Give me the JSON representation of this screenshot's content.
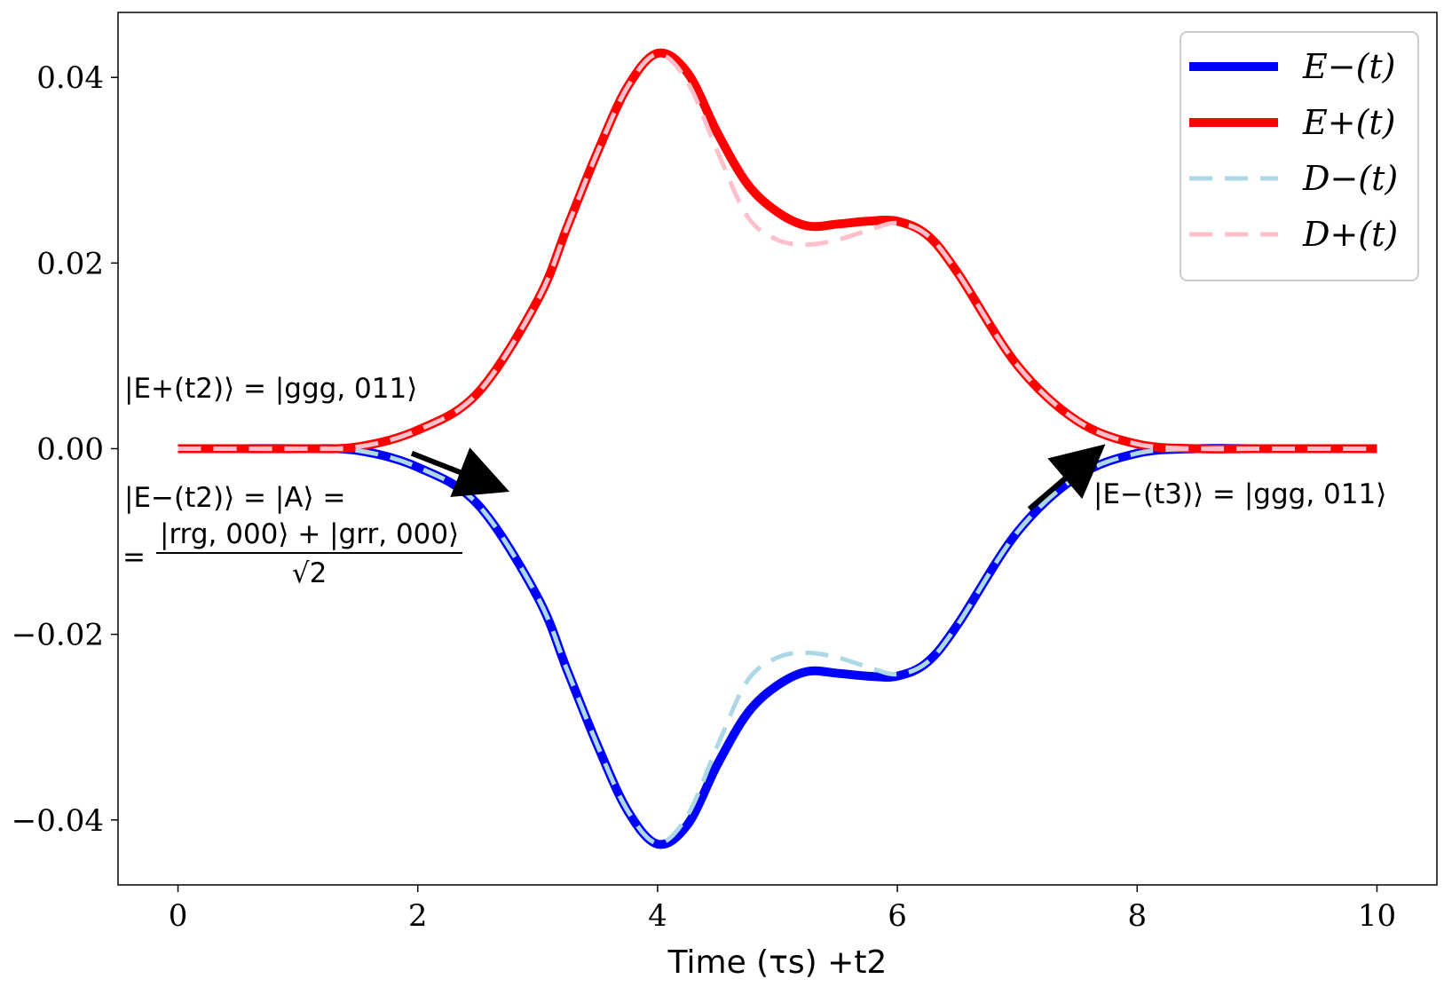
{
  "chart_data": {
    "type": "line",
    "title": "",
    "xlabel": "Time (τs) +t2",
    "ylabel": "",
    "xlim": [
      -0.5,
      10.5
    ],
    "ylim": [
      -0.047,
      0.047
    ],
    "xticks": [
      0,
      2,
      4,
      6,
      8,
      10
    ],
    "xtick_labels": [
      "0",
      "2",
      "4",
      "6",
      "8",
      "10"
    ],
    "yticks": [
      0.04,
      0.02,
      0.0,
      -0.02,
      -0.04
    ],
    "ytick_labels": [
      "0.04",
      "0.02",
      "0.00",
      "−0.02",
      "−0.04"
    ],
    "legend_position": "top-right",
    "x": [
      0,
      0.5,
      1.0,
      1.5,
      2.0,
      2.5,
      3.0,
      3.25,
      3.5,
      3.75,
      4.0,
      4.25,
      4.5,
      4.75,
      5.0,
      5.25,
      5.5,
      5.75,
      6.0,
      6.25,
      6.5,
      7.0,
      7.5,
      8.0,
      8.5,
      9.0,
      10.0
    ],
    "series": [
      {
        "name": "E−(t)",
        "color": "#0000ff",
        "style": "solid",
        "values": [
          0,
          0,
          0,
          -0.0002,
          -0.002,
          -0.006,
          -0.016,
          -0.024,
          -0.032,
          -0.039,
          -0.0426,
          -0.0405,
          -0.034,
          -0.0285,
          -0.0255,
          -0.024,
          -0.0242,
          -0.0245,
          -0.0245,
          -0.023,
          -0.019,
          -0.009,
          -0.003,
          -0.0005,
          0,
          0,
          0
        ]
      },
      {
        "name": "E+(t)",
        "color": "#ff0000",
        "style": "solid",
        "values": [
          0,
          0,
          0,
          0.0002,
          0.002,
          0.006,
          0.016,
          0.024,
          0.032,
          0.039,
          0.0426,
          0.0405,
          0.034,
          0.0285,
          0.0255,
          0.024,
          0.0242,
          0.0245,
          0.0245,
          0.023,
          0.019,
          0.009,
          0.003,
          0.0005,
          0,
          0,
          0
        ]
      },
      {
        "name": "D−(t)",
        "color": "#add8e6",
        "style": "dashed",
        "values": [
          0,
          0,
          0,
          -0.0002,
          -0.002,
          -0.006,
          -0.016,
          -0.024,
          -0.032,
          -0.039,
          -0.0425,
          -0.0395,
          -0.032,
          -0.025,
          -0.0225,
          -0.022,
          -0.0225,
          -0.0235,
          -0.0243,
          -0.023,
          -0.019,
          -0.009,
          -0.003,
          -0.0005,
          0,
          0,
          0
        ]
      },
      {
        "name": "D+(t)",
        "color": "#ffc0cb",
        "style": "dashed",
        "values": [
          0,
          0,
          0,
          0.0002,
          0.002,
          0.006,
          0.016,
          0.024,
          0.032,
          0.039,
          0.0425,
          0.0395,
          0.032,
          0.025,
          0.0225,
          0.022,
          0.0225,
          0.0235,
          0.0243,
          0.023,
          0.019,
          0.009,
          0.003,
          0.0005,
          0,
          0,
          0
        ]
      }
    ],
    "annotations": {
      "eplus_t2": "|E+(t2)⟩ = |ggg, 011⟩",
      "eminus_t2": "|E−(t2)⟩ = |A⟩ =",
      "eq_prefix": "=",
      "frac_numerator": "|rrg, 000⟩ + |grr, 000⟩",
      "frac_denominator": "√2",
      "eminus_t3": "|E−(t3)⟩ = |ggg, 011⟩"
    },
    "arrows": [
      {
        "from": [
          1.95,
          -0.0005
        ],
        "to": [
          2.6,
          -0.0038
        ]
      },
      {
        "from": [
          7.1,
          -0.0065
        ],
        "to": [
          7.6,
          -0.001
        ]
      }
    ]
  }
}
